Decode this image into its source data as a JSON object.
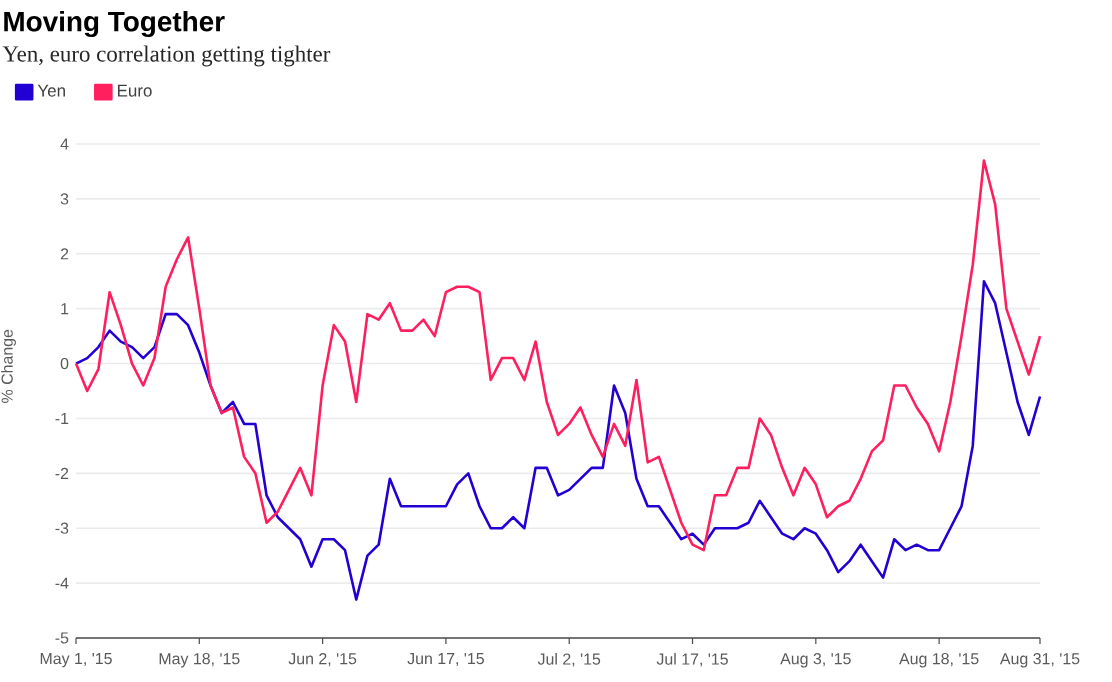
{
  "chart_data": {
    "type": "line",
    "title": "Moving Together",
    "subtitle": "Yen, euro correlation getting tighter",
    "ylabel": "% Change",
    "categories": [
      "May 1, '15",
      null,
      null,
      null,
      null,
      null,
      null,
      null,
      null,
      null,
      null,
      "May 18, '15",
      null,
      null,
      null,
      null,
      null,
      null,
      null,
      null,
      null,
      null,
      "Jun 2, '15",
      null,
      null,
      null,
      null,
      null,
      null,
      null,
      null,
      null,
      null,
      "Jun 17, '15",
      null,
      null,
      null,
      null,
      null,
      null,
      null,
      null,
      null,
      null,
      "Jul 2, '15",
      null,
      null,
      null,
      null,
      null,
      null,
      null,
      null,
      null,
      null,
      "Jul 17, '15",
      null,
      null,
      null,
      null,
      null,
      null,
      null,
      null,
      null,
      null,
      "Aug 3, '15",
      null,
      null,
      null,
      null,
      null,
      null,
      null,
      null,
      null,
      null,
      "Aug 18, '15",
      null,
      null,
      null,
      null,
      null,
      null,
      null,
      null,
      "Aug 31, '15"
    ],
    "series": [
      {
        "name": "Yen",
        "color": "#2200d4",
        "values": [
          0.0,
          0.1,
          0.3,
          0.6,
          0.4,
          0.3,
          0.1,
          0.3,
          0.9,
          0.9,
          0.7,
          0.2,
          -0.4,
          -0.9,
          -0.7,
          -1.1,
          -1.1,
          -2.4,
          -2.8,
          -3.0,
          -3.2,
          -3.7,
          -3.2,
          -3.2,
          -3.4,
          -4.3,
          -3.5,
          -3.3,
          -2.1,
          -2.6,
          -2.6,
          -2.6,
          -2.6,
          -2.6,
          -2.2,
          -2.0,
          -2.6,
          -3.0,
          -3.0,
          -2.8,
          -3.0,
          -1.9,
          -1.9,
          -2.4,
          -2.3,
          -2.1,
          -1.9,
          -1.9,
          -0.4,
          -0.9,
          -2.1,
          -2.6,
          -2.6,
          -2.9,
          -3.2,
          -3.1,
          -3.3,
          -3.0,
          -3.0,
          -3.0,
          -2.9,
          -2.5,
          -2.8,
          -3.1,
          -3.2,
          -3.0,
          -3.1,
          -3.4,
          -3.8,
          -3.6,
          -3.3,
          -3.6,
          -3.9,
          -3.2,
          -3.4,
          -3.3,
          -3.4,
          -3.4,
          -3.0,
          -2.6,
          -1.5,
          1.5,
          1.1,
          0.2,
          -0.7,
          -1.3,
          -0.6
        ]
      },
      {
        "name": "Euro",
        "color": "#ff1f5f",
        "values": [
          0.0,
          -0.5,
          -0.1,
          1.3,
          0.7,
          0.0,
          -0.4,
          0.1,
          1.4,
          1.9,
          2.3,
          1.0,
          -0.4,
          -0.9,
          -0.8,
          -1.7,
          -2.0,
          -2.9,
          -2.7,
          -2.3,
          -1.9,
          -2.4,
          -0.4,
          0.7,
          0.4,
          -0.7,
          0.9,
          0.8,
          1.1,
          0.6,
          0.6,
          0.8,
          0.5,
          1.3,
          1.4,
          1.4,
          1.3,
          -0.3,
          0.1,
          0.1,
          -0.3,
          0.4,
          -0.7,
          -1.3,
          -1.1,
          -0.8,
          -1.3,
          -1.7,
          -1.1,
          -1.5,
          -0.3,
          -1.8,
          -1.7,
          -2.3,
          -2.9,
          -3.3,
          -3.4,
          -2.4,
          -2.4,
          -1.9,
          -1.9,
          -1.0,
          -1.3,
          -1.9,
          -2.4,
          -1.9,
          -2.2,
          -2.8,
          -2.6,
          -2.5,
          -2.1,
          -1.6,
          -1.4,
          -0.4,
          -0.4,
          -0.8,
          -1.1,
          -1.6,
          -0.7,
          0.5,
          1.8,
          3.7,
          2.9,
          1.0,
          0.4,
          -0.2,
          0.5
        ]
      }
    ],
    "ylim": [
      -5,
      4
    ],
    "yticks": [
      -5,
      -4,
      -3,
      -2,
      -1,
      0,
      1,
      2,
      3,
      4
    ],
    "grid": "y",
    "legend": "top left",
    "marker": "none",
    "line_style": "solid"
  }
}
